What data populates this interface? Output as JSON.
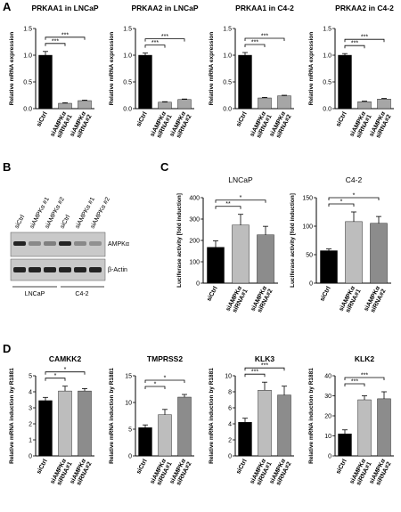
{
  "panels": [
    "A",
    "B",
    "C",
    "D"
  ],
  "blot": {
    "lanes": [
      "siCtrl",
      "siAMPKα #1",
      "siAMPKα #2",
      "siCtrl",
      "siAMPKα #1",
      "siAMPKα #2"
    ],
    "bands": [
      "AMPKα",
      "β-Actin"
    ],
    "groups": [
      "LNCaP",
      "C4-2"
    ]
  },
  "chart_data": [
    {
      "type": "bar",
      "title": "PRKAA1 in LNCaP",
      "y_label": "Relative mRNA expression",
      "categories": [
        "siCtrl",
        "siAMPKα\nsiRNA#1",
        "siAMPKα\nsiRNA#2"
      ],
      "values": [
        1.0,
        0.1,
        0.15
      ],
      "errors": [
        0.07,
        0.01,
        0.01
      ],
      "colors": [
        "#000000",
        "#a6a6a6",
        "#a6a6a6"
      ],
      "ylim": [
        0,
        1.5
      ],
      "yticks": [
        {
          "value": 0,
          "label": "0.0"
        },
        0.5,
        {
          "value": 1,
          "label": "1.0"
        },
        1.5
      ],
      "significance": [
        "***",
        "***"
      ]
    },
    {
      "type": "bar",
      "title": "PRKAA2 in LNCaP",
      "y_label": "Relative mRNA expression",
      "categories": [
        "siCtrl",
        "siAMPKα\nsiRNA#1",
        "siAMPKα\nsiRNA#2"
      ],
      "values": [
        1.0,
        0.12,
        0.17
      ],
      "errors": [
        0.04,
        0.01,
        0.01
      ],
      "colors": [
        "#000000",
        "#a6a6a6",
        "#a6a6a6"
      ],
      "ylim": [
        0,
        1.5
      ],
      "yticks": [
        {
          "value": 0,
          "label": "0.0"
        },
        0.5,
        {
          "value": 1,
          "label": "1.0"
        },
        1.5
      ],
      "significance": [
        "***",
        "***"
      ]
    },
    {
      "type": "bar",
      "title": "PRKAA1 in C4-2",
      "y_label": "Relative mRNA expression",
      "categories": [
        "siCtrl",
        "siAMPKα\nsiRNA#1",
        "siAMPKα\nsiRNA#2"
      ],
      "values": [
        1.0,
        0.2,
        0.24
      ],
      "errors": [
        0.05,
        0.01,
        0.01
      ],
      "colors": [
        "#000000",
        "#a6a6a6",
        "#a6a6a6"
      ],
      "ylim": [
        0,
        1.5
      ],
      "yticks": [
        {
          "value": 0,
          "label": "0.0"
        },
        0.5,
        {
          "value": 1,
          "label": "1.0"
        },
        1.5
      ],
      "significance": [
        "***",
        "***"
      ]
    },
    {
      "type": "bar",
      "title": "PRKAA2 in C4-2",
      "y_label": "Relative mRNA expression",
      "categories": [
        "siCtrl",
        "siAMPKα\nsiRNA#1",
        "siAMPKα\nsiRNA#2"
      ],
      "values": [
        1.0,
        0.13,
        0.18
      ],
      "errors": [
        0.03,
        0.01,
        0.01
      ],
      "colors": [
        "#000000",
        "#a6a6a6",
        "#a6a6a6"
      ],
      "ylim": [
        0,
        1.5
      ],
      "yticks": [
        {
          "value": 0,
          "label": "0.0"
        },
        0.5,
        {
          "value": 1,
          "label": "1.0"
        },
        1.5
      ],
      "significance": [
        "***",
        "***"
      ]
    },
    {
      "type": "bar",
      "title": "LNCaP",
      "y_label": "Luciferase activity [fold induction]",
      "categories": [
        "siCtrl",
        "siAMPKα\nsiRNA#1",
        "siAMPKα\nsiRNA#2"
      ],
      "values": [
        168,
        272,
        226
      ],
      "errors": [
        30,
        50,
        40
      ],
      "colors": [
        "#000000",
        "#bdbdbd",
        "#8c8c8c"
      ],
      "ylim": [
        0,
        400
      ],
      "yticks": [
        0,
        100,
        200,
        300,
        400
      ],
      "significance": [
        "**",
        "*"
      ]
    },
    {
      "type": "bar",
      "title": "C4-2",
      "y_label": "Luciferase activity [fold induction]",
      "categories": [
        "siCtrl",
        "siAMPKα\nsiRNA#1",
        "siAMPKα\nsiRNA#2"
      ],
      "values": [
        57,
        108,
        105
      ],
      "errors": [
        3,
        17,
        12
      ],
      "colors": [
        "#000000",
        "#bdbdbd",
        "#8c8c8c"
      ],
      "ylim": [
        0,
        150
      ],
      "yticks": [
        0,
        50,
        100,
        150
      ],
      "significance": [
        "*",
        "*"
      ]
    },
    {
      "type": "bar",
      "title": "CAMKK2",
      "y_label": "Relative mRNA induction by R1881",
      "categories": [
        "siCtrl",
        "siAMPKα\nsiRNA#1",
        "siAMPKα\nsiRNA#2"
      ],
      "values": [
        3.45,
        4.05,
        4.05
      ],
      "errors": [
        0.2,
        0.3,
        0.15
      ],
      "colors": [
        "#000000",
        "#bdbdbd",
        "#8c8c8c"
      ],
      "ylim": [
        0,
        5
      ],
      "yticks": [
        0,
        1,
        2,
        3,
        4,
        5
      ],
      "significance": [
        "*",
        "*"
      ]
    },
    {
      "type": "bar",
      "title": "TMPRSS2",
      "y_label": "Relative mRNA induction by R1881",
      "categories": [
        "siCtrl",
        "siAMPKα\nsiRNA#1",
        "siAMPKα\nsiRNA#2"
      ],
      "values": [
        5.3,
        7.7,
        11
      ],
      "errors": [
        0.5,
        1,
        0.5
      ],
      "colors": [
        "#000000",
        "#bdbdbd",
        "#8c8c8c"
      ],
      "ylim": [
        0,
        15
      ],
      "yticks": [
        0,
        5,
        10,
        15
      ],
      "significance": [
        "*",
        "*"
      ]
    },
    {
      "type": "bar",
      "title": "KLK3",
      "y_label": "Relative mRNA induction by R1881",
      "categories": [
        "siCtrl",
        "siAMPKα\nsiRNA#1",
        "siAMPKα\nsiRNA#2"
      ],
      "values": [
        4.2,
        8.2,
        7.6
      ],
      "errors": [
        0.5,
        1,
        1.1
      ],
      "colors": [
        "#000000",
        "#bdbdbd",
        "#8c8c8c"
      ],
      "ylim": [
        0,
        10
      ],
      "yticks": [
        0,
        2,
        4,
        6,
        8,
        10
      ],
      "significance": [
        "***",
        "***"
      ]
    },
    {
      "type": "bar",
      "title": "KLK2",
      "y_label": "Relative mRNA induction by R1881",
      "categories": [
        "siCtrl",
        "siAMPKα\nsiRNA#1",
        "siAMPKα\nsiRNA#2"
      ],
      "values": [
        11,
        28,
        28.5
      ],
      "errors": [
        2,
        2,
        3.5
      ],
      "colors": [
        "#000000",
        "#bdbdbd",
        "#8c8c8c"
      ],
      "ylim": [
        0,
        40
      ],
      "yticks": [
        0,
        10,
        20,
        30,
        40
      ],
      "significance": [
        "***",
        "***"
      ]
    }
  ]
}
